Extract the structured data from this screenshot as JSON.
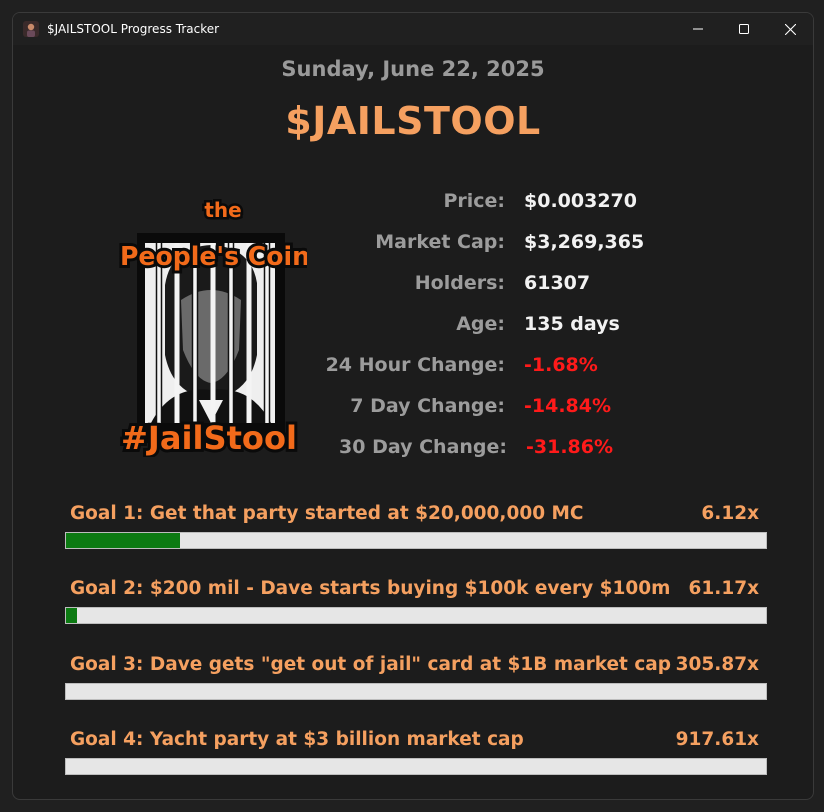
{
  "window": {
    "title": "$JAILSTOOL Progress Tracker",
    "controls": [
      "minimize-icon",
      "maximize-icon",
      "close-icon"
    ]
  },
  "header": {
    "date": "Sunday, June 22, 2025",
    "ticker": "$JAILSTOOL"
  },
  "logo": {
    "top_text": "the",
    "main_text": "People's Coin",
    "bottom_text": "#JailStool"
  },
  "stats": [
    {
      "label": "Price:",
      "value": "$0.003270",
      "color": "#f2f2f2"
    },
    {
      "label": "Market Cap:",
      "value": "$3,269,365",
      "color": "#f2f2f2"
    },
    {
      "label": "Holders:",
      "value": "61307",
      "color": "#f2f2f2"
    },
    {
      "label": "Age:",
      "value": "135 days",
      "color": "#f2f2f2"
    },
    {
      "label": "24 Hour Change:",
      "value": "-1.68%",
      "color": "#ff1a1a"
    },
    {
      "label": "7 Day Change:",
      "value": "-14.84%",
      "color": "#ff1a1a"
    },
    {
      "label": "30 Day Change:",
      "value": "-31.86%",
      "color": "#ff1a1a"
    }
  ],
  "goals": [
    {
      "label": "Goal 1: Get that party started at $20,000,000 MC",
      "multiplier": "6.12x",
      "progress_pct": 16.3
    },
    {
      "label": "Goal 2: $200 mil - Dave starts buying $100k every $100m",
      "multiplier": "61.17x",
      "progress_pct": 1.6
    },
    {
      "label": "Goal 3: Dave gets \"get out of jail\" card at $1B market cap",
      "multiplier": "305.87x",
      "progress_pct": 0.3
    },
    {
      "label": "Goal 4: Yacht party at $3 billion market cap",
      "multiplier": "917.61x",
      "progress_pct": 0.1
    }
  ],
  "colors": {
    "accent": "#f5a060",
    "negative": "#ff1a1a",
    "progress_fill": "#0c7a12",
    "progress_track": "#e6e6e6"
  }
}
